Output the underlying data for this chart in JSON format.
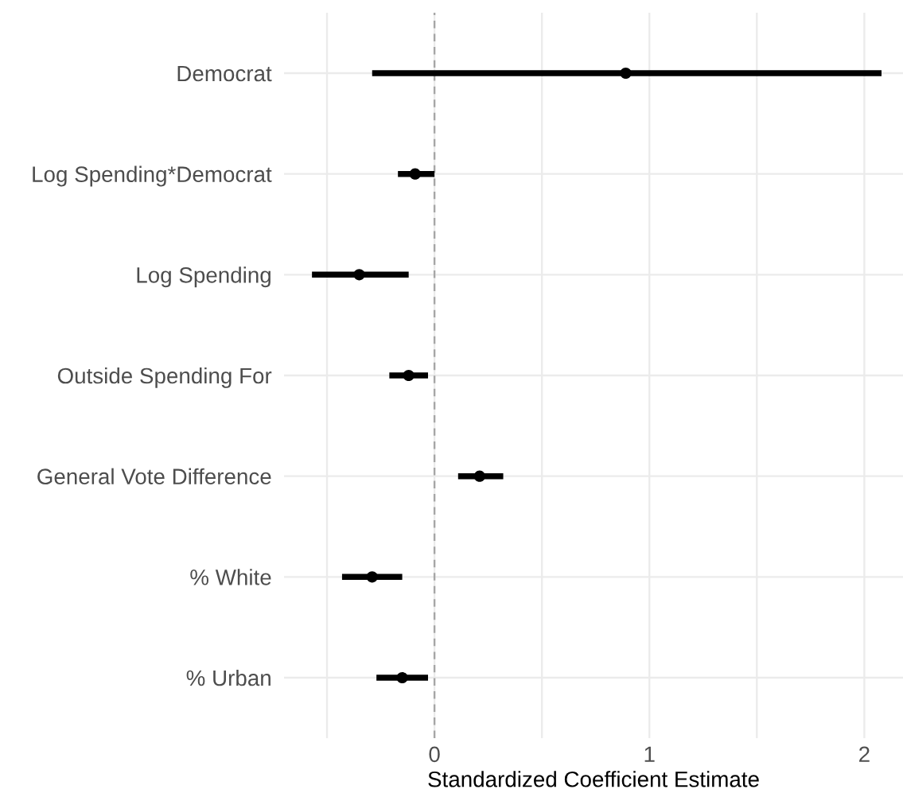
{
  "chart_data": {
    "type": "scatter",
    "orientation": "horizontal",
    "xlabel": "Standardized Coefficient Estimate",
    "categories": [
      "Democrat",
      "Log Spending*Democrat",
      "Log Spending",
      "Outside Spending For",
      "General Vote Difference",
      "% White",
      "% Urban"
    ],
    "values": [
      0.89,
      -0.09,
      -0.35,
      -0.12,
      0.21,
      -0.29,
      -0.15
    ],
    "errors": [
      [
        -0.29,
        2.08
      ],
      [
        -0.17,
        0.0
      ],
      [
        -0.57,
        -0.12
      ],
      [
        -0.21,
        -0.03
      ],
      [
        0.11,
        0.32
      ],
      [
        -0.43,
        -0.15
      ],
      [
        -0.27,
        -0.03
      ]
    ],
    "color": "#000000",
    "marker": "circle",
    "xlim": [
      -0.7,
      2.18
    ],
    "xticks": [
      {
        "value": -0.5,
        "label": null
      },
      0,
      {
        "value": 0.5,
        "label": null
      },
      1,
      {
        "value": 1.5,
        "label": null
      },
      2
    ],
    "ref_lines": [
      {
        "axis": "x",
        "value": 0,
        "color": "#a6a6a6",
        "line_style": "dashed"
      }
    ],
    "grid": true
  }
}
